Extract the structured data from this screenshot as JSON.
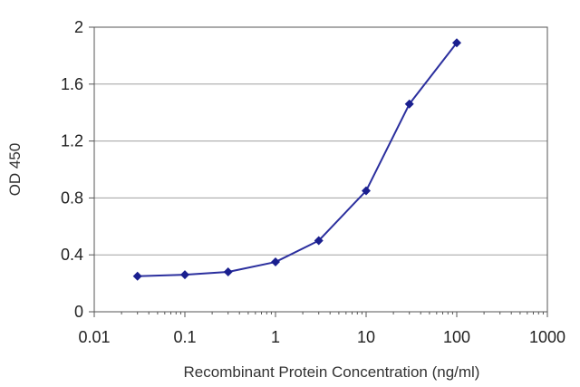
{
  "chart_data": {
    "type": "line",
    "xlabel": "Recombinant Protein Concentration (ng/ml)",
    "ylabel": "OD 450",
    "xscale": "log",
    "xlim": [
      0.01,
      1000
    ],
    "ylim": [
      0,
      2
    ],
    "x_ticks": [
      0.01,
      0.1,
      1,
      10,
      100,
      1000
    ],
    "x_tick_labels": [
      "0.01",
      "0.1",
      "1",
      "10",
      "100",
      "1000"
    ],
    "y_ticks": [
      0,
      0.4,
      0.8,
      1.2,
      1.6,
      2
    ],
    "y_tick_labels": [
      "0",
      "0.4",
      "0.8",
      "1.2",
      "1.6",
      "2"
    ],
    "grid": "horizontal",
    "series": [
      {
        "x": [
          0.03,
          0.1,
          0.3,
          1,
          3,
          10,
          30,
          100
        ],
        "y": [
          0.25,
          0.26,
          0.28,
          0.35,
          0.5,
          0.85,
          1.46,
          1.89
        ]
      }
    ],
    "colors": {
      "line": "#2b2f9e",
      "marker": "#1a1f8f",
      "grid": "#a0a0a0",
      "frame": "#555555"
    }
  }
}
